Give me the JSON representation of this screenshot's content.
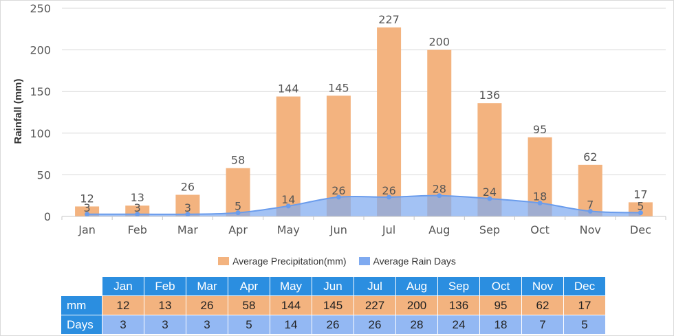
{
  "chart_data": {
    "type": "bar",
    "categories": [
      "Jan",
      "Feb",
      "Mar",
      "Apr",
      "May",
      "Jun",
      "Jul",
      "Aug",
      "Sep",
      "Oct",
      "Nov",
      "Dec"
    ],
    "series": [
      {
        "name": "Average Precipitation(mm)",
        "type": "bar",
        "axis": "left",
        "color": "#f3b37f",
        "values": [
          12,
          13,
          26,
          58,
          144,
          145,
          227,
          200,
          136,
          95,
          62,
          17
        ]
      },
      {
        "name": "Average Rain Days",
        "type": "area",
        "axis": "right-hidden",
        "color": "#7faaf0",
        "values": [
          3,
          3,
          3,
          5,
          14,
          26,
          26,
          28,
          24,
          18,
          7,
          5
        ]
      }
    ],
    "ylabel": "Rainfall (mm)",
    "ylim": [
      0,
      250
    ],
    "yticks": [
      0,
      50,
      100,
      150,
      200,
      250
    ],
    "grid": true,
    "legend_position": "bottom"
  },
  "table": {
    "months": [
      "Jan",
      "Feb",
      "Mar",
      "Apr",
      "May",
      "Jun",
      "Jul",
      "Aug",
      "Sep",
      "Oct",
      "Nov",
      "Dec"
    ],
    "rows": [
      {
        "label": "mm",
        "values": [
          "12",
          "13",
          "26",
          "58",
          "144",
          "145",
          "227",
          "200",
          "136",
          "95",
          "62",
          "17"
        ]
      },
      {
        "label": "Days",
        "values": [
          "3",
          "3",
          "3",
          "5",
          "14",
          "26",
          "26",
          "28",
          "24",
          "18",
          "7",
          "5"
        ]
      }
    ]
  }
}
